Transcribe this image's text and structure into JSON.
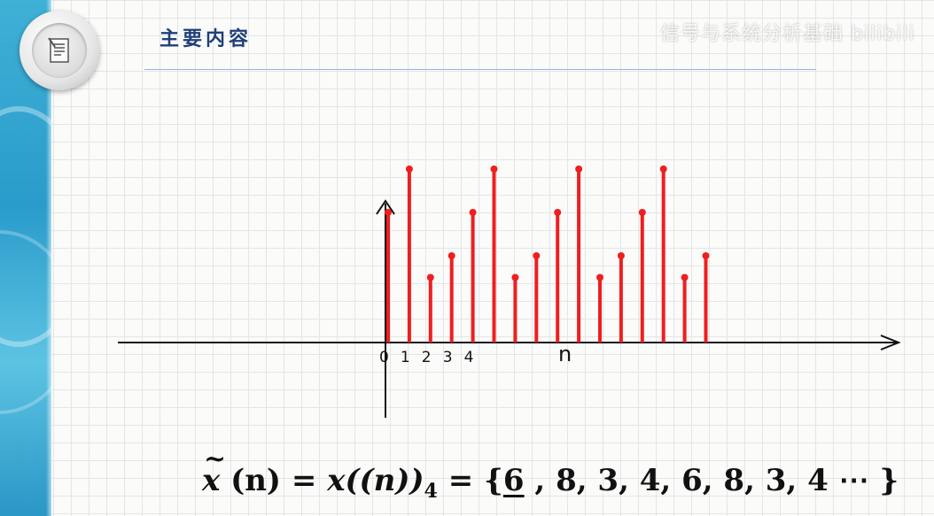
{
  "header": {
    "title": "主要内容",
    "watermark": "信号与系统分析基础 bilibili"
  },
  "icons": {
    "badge": "document-icon"
  },
  "chart_data": {
    "type": "stem",
    "x": [
      0,
      1,
      2,
      3,
      4,
      5,
      6,
      7,
      8,
      9,
      10,
      11,
      12,
      13,
      14,
      15
    ],
    "values": [
      6,
      8,
      3,
      4,
      6,
      8,
      3,
      4,
      6,
      8,
      3,
      4,
      6,
      8,
      3,
      4
    ],
    "xticklabels": [
      "0",
      "1",
      "2",
      "3",
      "4"
    ],
    "xlabel": "n",
    "ylim": [
      0,
      8.5
    ],
    "color": "#ee1f1f",
    "grid": false
  },
  "formula": {
    "lhs": "x",
    "lhs_arg": "(n)",
    "eq1": " = ",
    "rhs": "x((n))",
    "subscript": "4",
    "eq2": " = ",
    "open": "{",
    "first": "6",
    "rest": " , 8, 3, 4, 6, 8, 3, 4 ⋯ ",
    "close": "}"
  }
}
